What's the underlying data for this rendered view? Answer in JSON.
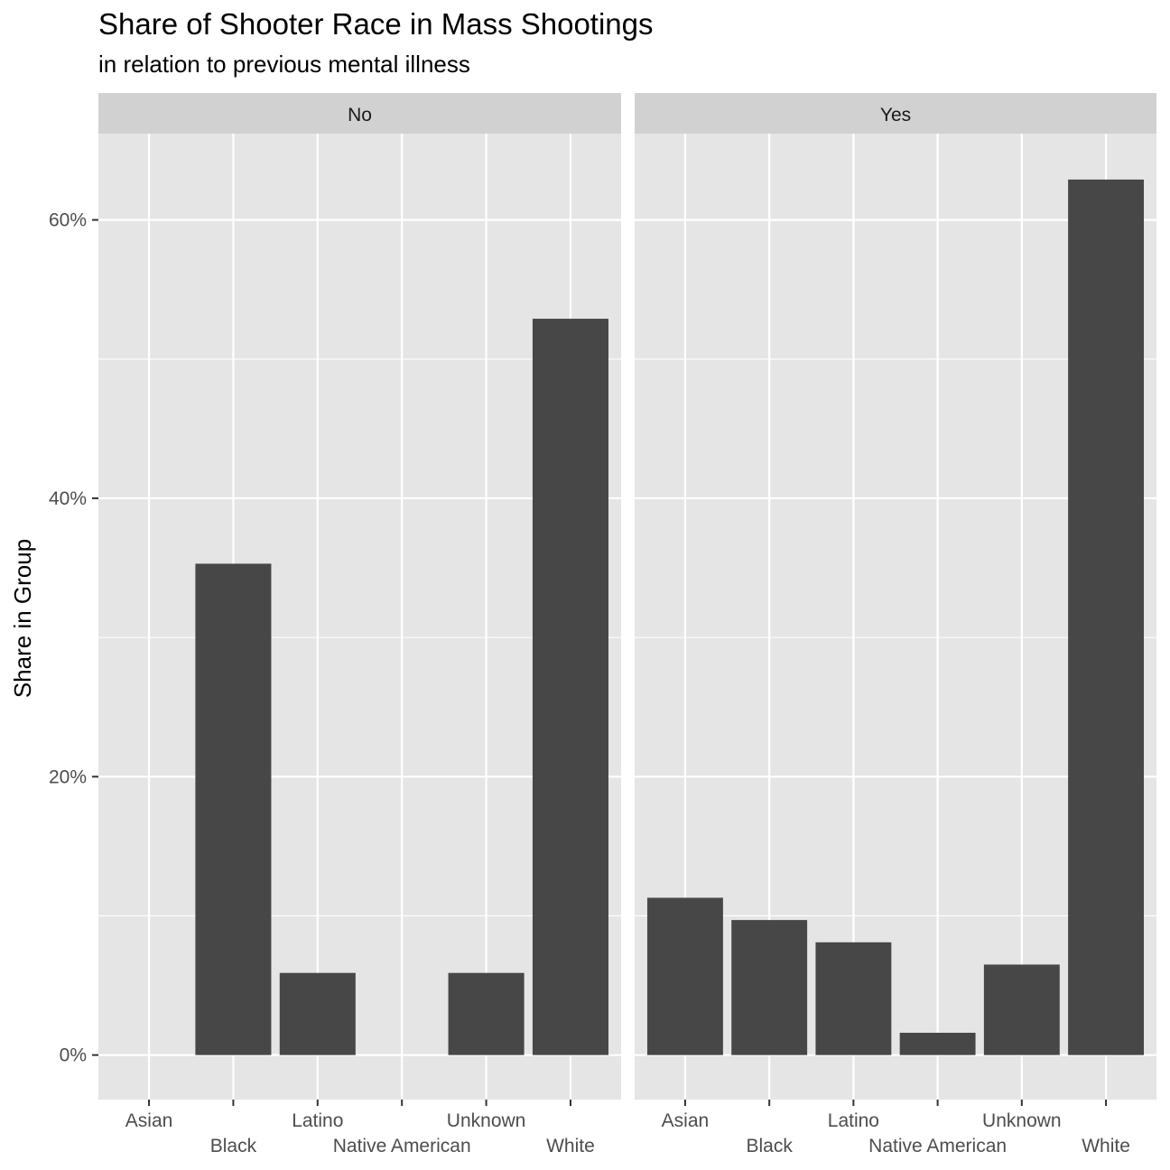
{
  "chart_data": {
    "type": "bar",
    "title": "Share of Shooter Race in Mass Shootings",
    "subtitle": "in relation to previous mental illness",
    "xlabel": "",
    "ylabel": "Share in Group",
    "categories": [
      "Asian",
      "Black",
      "Latino",
      "Native American",
      "Unknown",
      "White"
    ],
    "ylim": [
      -0.032,
      0.662
    ],
    "yticks": [
      0,
      0.2,
      0.4,
      0.6
    ],
    "ytick_labels": [
      "0%",
      "20%",
      "40%",
      "60%"
    ],
    "grid": true,
    "bar_color": "#474747",
    "panel_color": "#e5e5e5",
    "strip_color": "#d1d1d1",
    "facets": [
      {
        "name": "No",
        "values": [
          0,
          0.353,
          0.059,
          0,
          0.059,
          0.529
        ]
      },
      {
        "name": "Yes",
        "values": [
          0.113,
          0.097,
          0.081,
          0.016,
          0.065,
          0.629
        ]
      }
    ]
  }
}
